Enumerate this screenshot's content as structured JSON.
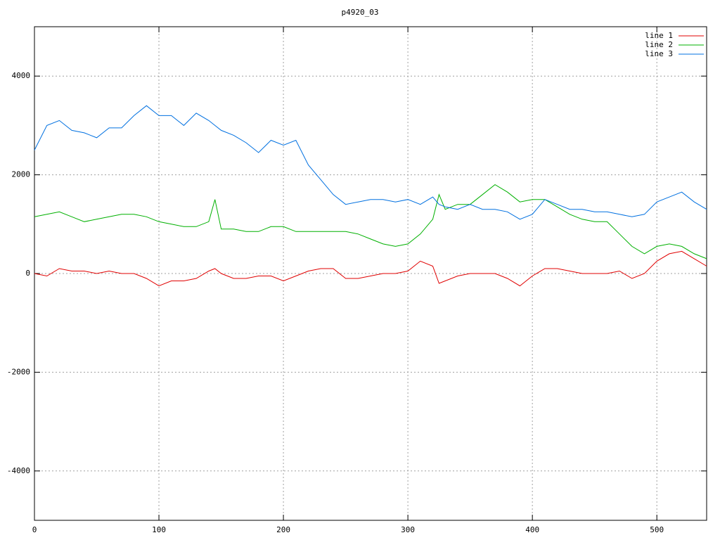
{
  "chart_data": {
    "type": "line",
    "title": "p4920_03",
    "x": [
      0,
      10,
      20,
      30,
      40,
      50,
      60,
      70,
      80,
      90,
      100,
      110,
      120,
      130,
      140,
      145,
      150,
      160,
      170,
      180,
      190,
      200,
      210,
      220,
      230,
      240,
      250,
      260,
      270,
      280,
      290,
      300,
      310,
      320,
      325,
      330,
      340,
      350,
      360,
      370,
      380,
      390,
      400,
      410,
      420,
      430,
      440,
      450,
      460,
      470,
      480,
      490,
      500,
      510,
      520,
      530,
      540
    ],
    "series": [
      {
        "name": "line 1",
        "color": "#e00000",
        "values": [
          0,
          -50,
          100,
          50,
          50,
          0,
          50,
          0,
          0,
          -100,
          -250,
          -150,
          -150,
          -100,
          50,
          100,
          0,
          -100,
          -100,
          -50,
          -50,
          -150,
          -50,
          50,
          100,
          100,
          -100,
          -100,
          -50,
          0,
          0,
          50,
          250,
          150,
          -200,
          -150,
          -50,
          0,
          0,
          0,
          -100,
          -250,
          -50,
          100,
          100,
          50,
          0,
          0,
          0,
          50,
          -100,
          0,
          250,
          400,
          450,
          300,
          150
        ]
      },
      {
        "name": "line 2",
        "color": "#00b000",
        "values": [
          1150,
          1200,
          1250,
          1150,
          1050,
          1100,
          1150,
          1200,
          1200,
          1150,
          1050,
          1000,
          950,
          950,
          1050,
          1500,
          900,
          900,
          850,
          850,
          950,
          950,
          850,
          850,
          850,
          850,
          850,
          800,
          700,
          600,
          550,
          600,
          800,
          1100,
          1600,
          1300,
          1400,
          1400,
          1600,
          1800,
          1650,
          1450,
          1500,
          1500,
          1350,
          1200,
          1100,
          1050,
          1050,
          800,
          550,
          400,
          550,
          600,
          550,
          400,
          300
        ]
      },
      {
        "name": "line 3",
        "color": "#0070e0",
        "values": [
          2500,
          3000,
          3100,
          2900,
          2850,
          2750,
          2950,
          2950,
          3200,
          3400,
          3200,
          3200,
          3000,
          3250,
          3100,
          3000,
          2900,
          2800,
          2650,
          2450,
          2700,
          2600,
          2700,
          2200,
          1900,
          1600,
          1400,
          1450,
          1500,
          1500,
          1450,
          1500,
          1400,
          1550,
          1400,
          1350,
          1300,
          1400,
          1300,
          1300,
          1250,
          1100,
          1200,
          1500,
          1400,
          1300,
          1300,
          1250,
          1250,
          1200,
          1150,
          1200,
          1450,
          1550,
          1650,
          1450,
          1300
        ]
      }
    ],
    "xlim": [
      0,
      540
    ],
    "ylim": [
      -5000,
      5000
    ],
    "xticks": [
      0,
      100,
      200,
      300,
      400,
      500
    ],
    "yticks": [
      -4000,
      -2000,
      0,
      2000,
      4000
    ],
    "grid": true,
    "legend": "top-right"
  }
}
